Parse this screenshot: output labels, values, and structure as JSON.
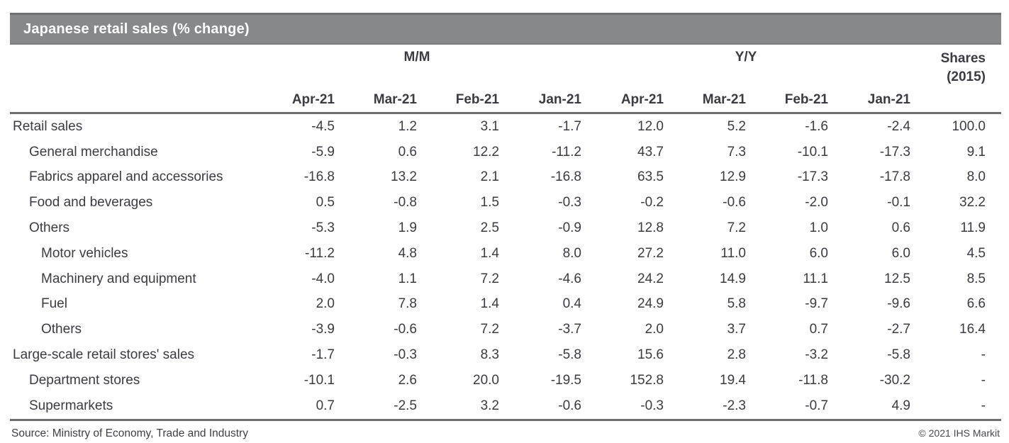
{
  "chart_data": {
    "type": "table",
    "title": "Japanese retail sales (% change)",
    "column_groups": [
      "M/M",
      "Y/Y"
    ],
    "shares_header": [
      "Shares",
      "(2015)"
    ],
    "columns": [
      "Apr-21",
      "Mar-21",
      "Feb-21",
      "Jan-21",
      "Apr-21",
      "Mar-21",
      "Feb-21",
      "Jan-21"
    ],
    "rows": [
      {
        "label": "Retail sales",
        "indent": 0,
        "mm": [
          -4.5,
          1.2,
          3.1,
          -1.7
        ],
        "yy": [
          12.0,
          5.2,
          -1.6,
          -2.4
        ],
        "shares": 100.0
      },
      {
        "label": "General merchandise",
        "indent": 1,
        "mm": [
          -5.9,
          0.6,
          12.2,
          -11.2
        ],
        "yy": [
          43.7,
          7.3,
          -10.1,
          -17.3
        ],
        "shares": 9.1
      },
      {
        "label": "Fabrics apparel and accessories",
        "indent": 1,
        "mm": [
          -16.8,
          13.2,
          2.1,
          -16.8
        ],
        "yy": [
          63.5,
          12.9,
          -17.3,
          -17.8
        ],
        "shares": 8.0
      },
      {
        "label": "Food and beverages",
        "indent": 1,
        "mm": [
          0.5,
          -0.8,
          1.5,
          -0.3
        ],
        "yy": [
          -0.2,
          -0.6,
          -2.0,
          -0.1
        ],
        "shares": 32.2
      },
      {
        "label": "Others",
        "indent": 1,
        "mm": [
          -5.3,
          1.9,
          2.5,
          -0.9
        ],
        "yy": [
          12.8,
          7.2,
          1.0,
          0.6
        ],
        "shares": 11.9
      },
      {
        "label": "Motor vehicles",
        "indent": 2,
        "mm": [
          -11.2,
          4.8,
          1.4,
          8.0
        ],
        "yy": [
          27.2,
          11.0,
          6.0,
          6.0
        ],
        "shares": 4.5
      },
      {
        "label": "Machinery and equipment",
        "indent": 2,
        "mm": [
          -4.0,
          1.1,
          7.2,
          -4.6
        ],
        "yy": [
          24.2,
          14.9,
          11.1,
          12.5
        ],
        "shares": 8.5
      },
      {
        "label": "Fuel",
        "indent": 2,
        "mm": [
          2.0,
          7.8,
          1.4,
          0.4
        ],
        "yy": [
          24.9,
          5.8,
          -9.7,
          -9.6
        ],
        "shares": 6.6
      },
      {
        "label": "Others",
        "indent": 2,
        "mm": [
          -3.9,
          -0.6,
          7.2,
          -3.7
        ],
        "yy": [
          2.0,
          3.7,
          0.7,
          -2.7
        ],
        "shares": 16.4
      },
      {
        "label": "Large-scale retail stores' sales",
        "indent": 0,
        "mm": [
          -1.7,
          -0.3,
          8.3,
          -5.8
        ],
        "yy": [
          15.6,
          2.8,
          -3.2,
          -5.8
        ],
        "shares": null
      },
      {
        "label": "Department stores",
        "indent": 1,
        "mm": [
          -10.1,
          2.6,
          20.0,
          -19.5
        ],
        "yy": [
          152.8,
          19.4,
          -11.8,
          -30.2
        ],
        "shares": null
      },
      {
        "label": "Supermarkets",
        "indent": 1,
        "mm": [
          0.7,
          -2.5,
          3.2,
          -0.6
        ],
        "yy": [
          -0.3,
          -2.3,
          -0.7,
          4.9
        ],
        "shares": null
      }
    ],
    "missing_value_marker": "-",
    "source": "Source: Ministry of Economy, Trade and Industry",
    "copyright": "© 2021 IHS Markit",
    "layout": {
      "header_bg": "#87888a",
      "header_text": "#ffffff",
      "rule_color": "#6e6e6e",
      "body_text": "#3b3b41"
    }
  }
}
